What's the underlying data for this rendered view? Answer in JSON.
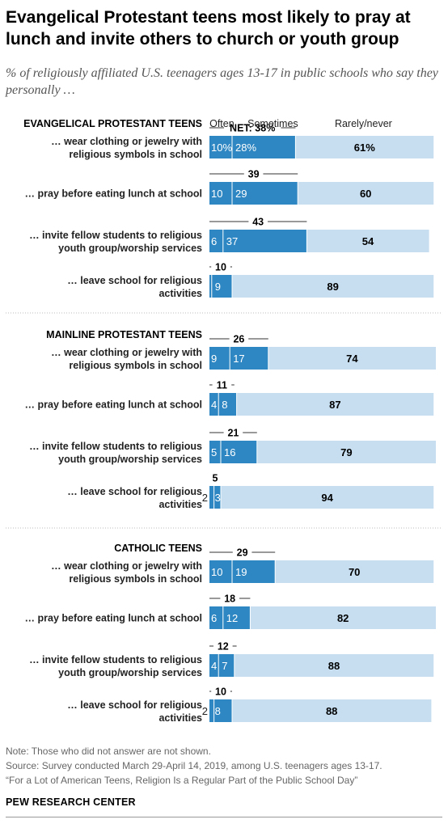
{
  "title": "Evangelical Protestant teens most likely to pray at lunch and invite others to church or youth group",
  "subtitle": "% of religiously affiliated U.S. teenagers ages 13-17 in public schools who say they personally …",
  "legend": {
    "often": "Often",
    "sometimes": "Sometimes",
    "rarely": "Rarely/never",
    "net_prefix": "NET:"
  },
  "colors": {
    "often": "#2e87c2",
    "sometimes": "#2e87c2",
    "rarely": "#c6def0",
    "separator": "#ffffff"
  },
  "chart_data": {
    "type": "bar",
    "orientation": "horizontal",
    "stacked": true,
    "xlim": [
      0,
      100
    ],
    "series_names": [
      "Often",
      "Sometimes",
      "Rarely/never"
    ],
    "groups": [
      {
        "name": "EVANGELICAL PROTESTANT TEENS",
        "items": [
          {
            "label": [
              "… wear clothing or jewelry with",
              "religious symbols in school"
            ],
            "often": 10,
            "sometimes": 28,
            "rarely": 61,
            "net": 38,
            "often_label": "10%",
            "sometimes_label": "28%",
            "rarely_label": "61%",
            "net_label": "NET: 38%"
          },
          {
            "label": [
              "… pray before eating lunch at school"
            ],
            "often": 10,
            "sometimes": 29,
            "rarely": 60,
            "net": 39
          },
          {
            "label": [
              "… invite fellow students to religious",
              "youth group/worship services"
            ],
            "often": 6,
            "sometimes": 37,
            "rarely": 54,
            "net": 43
          },
          {
            "label": [
              "… leave school for religious",
              "activities"
            ],
            "often": 1,
            "sometimes": 9,
            "rarely": 89,
            "net": 10,
            "often_label": ""
          }
        ]
      },
      {
        "name": "MAINLINE PROTESTANT TEENS",
        "items": [
          {
            "label": [
              "… wear clothing or jewelry with",
              "religious symbols in school"
            ],
            "often": 9,
            "sometimes": 17,
            "rarely": 74,
            "net": 26
          },
          {
            "label": [
              "… pray before eating lunch at school"
            ],
            "often": 4,
            "sometimes": 8,
            "rarely": 87,
            "net": 11
          },
          {
            "label": [
              "… invite fellow students to religious",
              "youth group/worship services"
            ],
            "often": 5,
            "sometimes": 16,
            "rarely": 79,
            "net": 21
          },
          {
            "label": [
              "… leave school for religious",
              "activities"
            ],
            "often": 2,
            "sometimes": 3,
            "rarely": 94,
            "net": 5,
            "often_outside": true
          }
        ]
      },
      {
        "name": "CATHOLIC TEENS",
        "items": [
          {
            "label": [
              "… wear clothing or jewelry with",
              "religious symbols in school"
            ],
            "often": 10,
            "sometimes": 19,
            "rarely": 70,
            "net": 29
          },
          {
            "label": [
              "… pray before eating lunch at school"
            ],
            "often": 6,
            "sometimes": 12,
            "rarely": 82,
            "net": 18
          },
          {
            "label": [
              "… invite fellow students to religious",
              "youth group/worship services"
            ],
            "often": 4,
            "sometimes": 7,
            "rarely": 88,
            "net": 12
          },
          {
            "label": [
              "… leave school for religious",
              "activities"
            ],
            "often": 2,
            "sometimes": 8,
            "rarely": 88,
            "net": 10,
            "often_outside": true
          }
        ]
      }
    ]
  },
  "footer": {
    "note": "Note: Those who did not answer are not shown.",
    "source": "Source: Survey conducted March 29-April 14, 2019, among U.S. teenagers ages 13-17.",
    "citation": "“For a Lot of American Teens, Religion Is a Regular Part of the Public School Day”",
    "brand": "PEW RESEARCH CENTER"
  }
}
